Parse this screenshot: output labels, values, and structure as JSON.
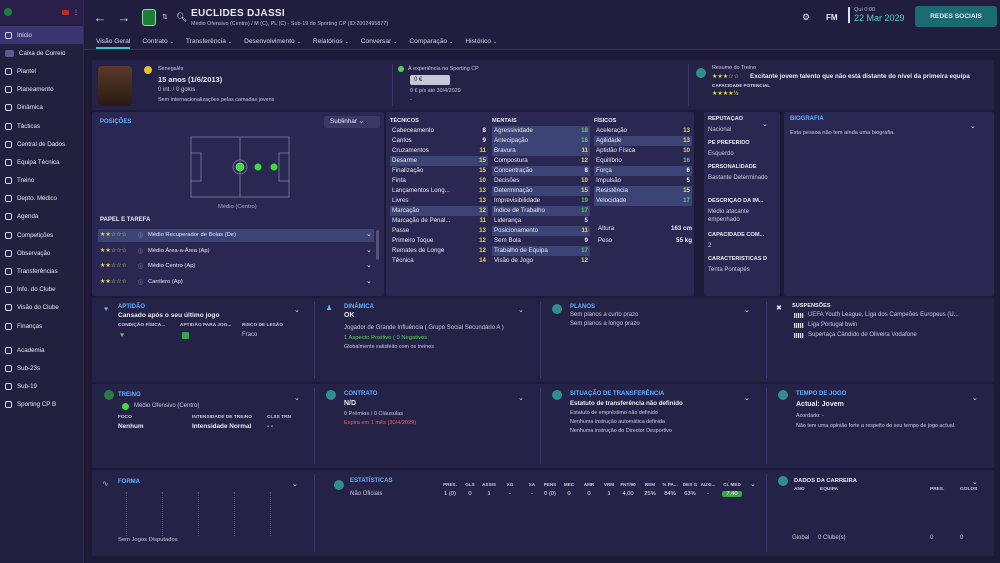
{
  "header": {
    "name": "EUCLIDES DJASSI",
    "subtitle": "Médio Ofensivo (Centro) / M (C), PL (C) - Sub-19 do Sporting CP (ID:2002495877)",
    "fm": "FM",
    "day": "Qui 0:00",
    "date": "22 Mar 2029",
    "social": "REDES SOCIAIS"
  },
  "tabs": [
    "Visão Geral",
    "Contrato",
    "Transferência",
    "Desenvolvimento",
    "Relatórios",
    "Conversar",
    "Comparação",
    "Histórico"
  ],
  "sidebar": [
    "Início",
    "Caixa de Correio",
    "Plantel",
    "Planeamento",
    "Dinâmica",
    "Tácticas",
    "Central de Dados",
    "Equipa Técnica",
    "Treino",
    "Depto. Médico",
    "Agenda",
    "Competições",
    "Observação",
    "Transferências",
    "Info. do Clube",
    "Visão do Clube",
    "Finanças",
    "Academia",
    "Sub-23s",
    "Sub-19",
    "Sporting CP B"
  ],
  "sidebar_badge": "94",
  "top": {
    "nation": "Senegalês",
    "age": "15 anos (1/6/2013)",
    "caps": "0 int. / 0 golos",
    "youth": "Sem internacionalizações pelas camadas jovens",
    "exp_title": "À experiência no Sporting CP",
    "exp_val": "0 €",
    "exp_wage": "0 € p/s até 30/4/2029",
    "exp_dash": "-",
    "train_title": "Resumo do Treino",
    "train_text": "Excitante jovem talento que não está distante do nível da primeira equipa",
    "pot_label": "CAPACIDADE POTENCIAL"
  },
  "positions": {
    "title": "POSIÇÕES",
    "btn": "Sublinhar",
    "label": "Médio (Centro)",
    "role_title": "PAPEL E TAREFA",
    "roles": [
      "Médio Recuperador de Bolas (De)",
      "Médio Área-a-Área (Ap)",
      "Médio Centro (Ap)",
      "Carrilero (Ap)"
    ]
  },
  "attrs": {
    "tec_title": "TÉCNICOS",
    "men_title": "MENTAIS",
    "fis_title": "FÍSICOS",
    "tec": [
      [
        "Cabeceamento",
        "8"
      ],
      [
        "Cantos",
        "9"
      ],
      [
        "Cruzamentos",
        "11"
      ],
      [
        "Desarme",
        "15"
      ],
      [
        "Finalização",
        "15"
      ],
      [
        "Finta",
        "10"
      ],
      [
        "Lançamentos Long...",
        "13"
      ],
      [
        "Livres",
        "13"
      ],
      [
        "Marcação",
        "12"
      ],
      [
        "Marcação de Penal...",
        "11"
      ],
      [
        "Passe",
        "13"
      ],
      [
        "Primeiro Toque",
        "12"
      ],
      [
        "Remates de Longe",
        "12"
      ],
      [
        "Técnica",
        "14"
      ]
    ],
    "men": [
      [
        "Agressividade",
        "18"
      ],
      [
        "Antecipação",
        "16"
      ],
      [
        "Bravura",
        "11"
      ],
      [
        "Compostura",
        "12"
      ],
      [
        "Concentração",
        "8"
      ],
      [
        "Decisões",
        "10"
      ],
      [
        "Determinação",
        "15"
      ],
      [
        "Imprevisibilidade",
        "19"
      ],
      [
        "Índice de Trabalho",
        "17"
      ],
      [
        "Liderança",
        "5"
      ],
      [
        "Posicionamento",
        "11"
      ],
      [
        "Sem Bola",
        "9"
      ],
      [
        "Trabalho de Equipa",
        "17"
      ],
      [
        "Visão de Jogo",
        "12"
      ]
    ],
    "fis": [
      [
        "Aceleração",
        "13"
      ],
      [
        "Agilidade",
        "13"
      ],
      [
        "Aptidão Física",
        "10"
      ],
      [
        "Equilíbrio",
        "16"
      ],
      [
        "Força",
        "6"
      ],
      [
        "Impulsão",
        "5"
      ],
      [
        "Resistência",
        "15"
      ],
      [
        "Velocidade",
        "17"
      ]
    ],
    "height_l": "Altura",
    "height": "163 cm",
    "weight_l": "Peso",
    "weight": "55 kg"
  },
  "info": [
    [
      "REPUTAÇÃO",
      "Nacional"
    ],
    [
      "PÉ PREFERIDO",
      "Esquerdo"
    ],
    [
      "PERSONALIDADE",
      "Bastante Determinado"
    ],
    [
      "DESCRIÇÃO DA IM...",
      "Médio atacante empenhado"
    ],
    [
      "CAPACIDADE COM...",
      "2"
    ],
    [
      "CARACTERÍSTICAS D",
      "Tenta Pontapés"
    ]
  ],
  "bio": {
    "title": "BIOGRAFIA",
    "text": "Esta pessoa não tem ainda uma biografia."
  },
  "fitness": {
    "title": "APTIDÃO",
    "text": "Cansado após o seu último jogo",
    "c1": "CONDIÇÃO FÍSICA...",
    "c2": "APTIDÃO PARA JOG...",
    "c3": "RISCO DE LESÃO",
    "v3": "Fraco"
  },
  "dynamics": {
    "title": "DINÂMICA",
    "val": "OK",
    "l1": "Jogador de Grande Influência ( Grupo Social Secundário A )",
    "l2": "1 Aspecto Positivo ( 0 Negativos",
    "l3": "Globalmente satisfeito com os treinos"
  },
  "plans": {
    "title": "PLANOS",
    "l1": "Sem planos a curto prazo",
    "l2": "Sem planos a longo prazo"
  },
  "susp": {
    "title": "SUSPENSÕES",
    "items": [
      "UEFA Youth League, Liga dos Campeões Europeus (U...",
      "Liga Portugal bwin",
      "Supertaça Cândido de Oliveira Vodafone"
    ]
  },
  "training": {
    "title": "TREINO",
    "pos": "Médio Ofensivo (Centro)",
    "f": "FOCO",
    "fv": "Nenhum",
    "i": "INTENSIDADE DE TREINO",
    "iv": "Intensidade Normal",
    "c": "CLSS TRN",
    "cv": "- -"
  },
  "contract": {
    "title": "CONTRATO",
    "val": "N/D",
    "l1": "0 Prémios / 0 Cláusulas",
    "l2": "Expira em 1 mês (30/4/2029)"
  },
  "transfer": {
    "title": "SITUAÇÃO DE TRANSFERÊNCIA",
    "val": "Estatuto de transferência não definido",
    "l1": "Estatuto de empréstimo não definido",
    "l2": "Nenhuma instrução automática definida",
    "l3": "Nenhuma instrução do Director Desportivo"
  },
  "playtime": {
    "title": "TEMPO DE JOGO",
    "val": "Actual: Jovem",
    "l1": "Acordado: -",
    "l2": "Não tem uma opinião forte a respeito do seu tempo de jogo actual."
  },
  "form": {
    "title": "FORMA",
    "empty": "Sem Jogos Disputados"
  },
  "stats": {
    "title": "ESTATÍSTICAS",
    "cols": [
      "PRES.",
      "GLS",
      "ASSIS",
      "XG",
      "XA",
      "PENS",
      "MEC",
      "AMR",
      "VRM",
      "FNT/90",
      "REM",
      "% PA...",
      "DES G",
      "AUXI...",
      "CL MED"
    ],
    "row_label": "Não Oficiais",
    "row": [
      "1 (0)",
      "0",
      "1",
      "-",
      "-",
      "0 (0)",
      "0",
      "0",
      "1",
      "4,00",
      "25%",
      "84%",
      "63%",
      "-",
      "7,40"
    ]
  },
  "career": {
    "title": "DADOS DA CARREIRA",
    "c1": "ANO",
    "c2": "EQUIPA",
    "c3": "PRES.",
    "c4": "GOLOS",
    "tot": "Global",
    "club": "0 Clube(s)",
    "p": "0",
    "g": "0"
  }
}
